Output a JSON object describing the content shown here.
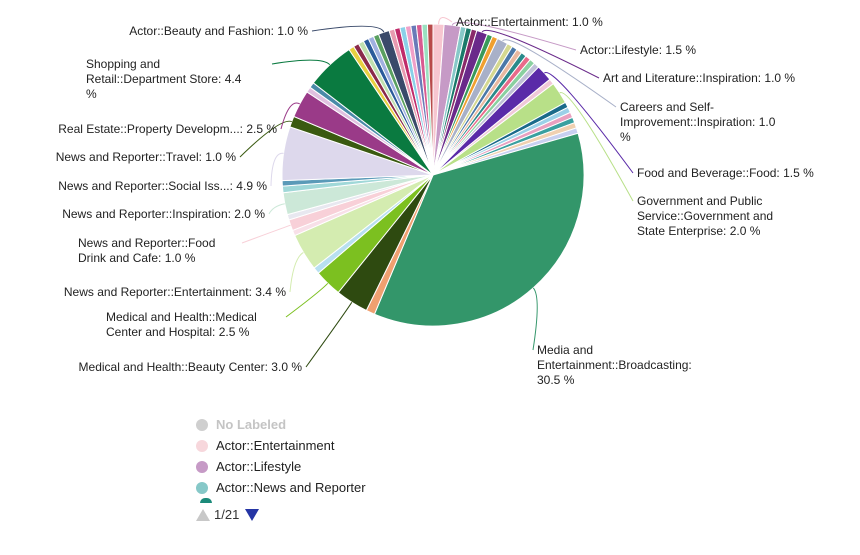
{
  "chart_data": {
    "type": "pie",
    "slices": [
      {
        "label": "Actor::Entertainment",
        "value": 1.0,
        "text": "Actor::Entertainment: 1.0 %",
        "color": "#f7c6d0"
      },
      {
        "label": "Actor::Lifestyle",
        "value": 1.5,
        "text": "Actor::Lifestyle: 1.5 %",
        "color": "#c69ac6"
      },
      {
        "label": "Actor::News and Reporter",
        "value": 0.5,
        "color": "#86c8c8"
      },
      {
        "label": "",
        "value": 0.5,
        "color": "#1a7a6a"
      },
      {
        "label": "",
        "value": 0.5,
        "color": "#8a2a6a"
      },
      {
        "label": "Art and Literature::Inspiration",
        "value": 1.0,
        "text": "Art and Literature::Inspiration: 1.0 %",
        "color": "#6a2a8a"
      },
      {
        "label": "",
        "value": 0.5,
        "color": "#3a9a5a"
      },
      {
        "label": "",
        "value": 0.5,
        "color": "#f0a030"
      },
      {
        "label": "Careers and Self-Improvement::Inspiration",
        "value": 1.0,
        "text": "Careers and Self-Improvement::Inspiration: 1.0 %",
        "color": "#a8b0c8"
      },
      {
        "label": "",
        "value": 0.5,
        "color": "#d4d890"
      },
      {
        "label": "",
        "value": 0.5,
        "color": "#4a78a8"
      },
      {
        "label": "",
        "value": 0.5,
        "color": "#e8b8a0"
      },
      {
        "label": "",
        "value": 0.5,
        "color": "#2a8a8a"
      },
      {
        "label": "",
        "value": 0.5,
        "color": "#e86a8a"
      },
      {
        "label": "",
        "value": 0.5,
        "color": "#8ad0a0"
      },
      {
        "label": "",
        "value": 0.5,
        "color": "#c0c0d8"
      },
      {
        "label": "Food and Beverage::Food",
        "value": 1.5,
        "text": "Food and Beverage::Food: 1.5 %",
        "color": "#5a2aa8"
      },
      {
        "label": "",
        "value": 0.5,
        "color": "#f0c8d8"
      },
      {
        "label": "Government and Public Service::Government and State Enterprise",
        "value": 2.0,
        "text": "Government and Public Service::Government and State Enterprise: 2.0 %",
        "color": "#b8e088"
      },
      {
        "label": "",
        "value": 0.5,
        "color": "#1a6a8a"
      },
      {
        "label": "",
        "value": 0.5,
        "color": "#9ad0e8"
      },
      {
        "label": "",
        "value": 0.5,
        "color": "#e8a0c0"
      },
      {
        "label": "",
        "value": 0.5,
        "color": "#3aa0a0"
      },
      {
        "label": "",
        "value": 0.5,
        "color": "#f0d0b0"
      },
      {
        "label": "",
        "value": 0.5,
        "color": "#c8d0f0"
      },
      {
        "label": "Media and Entertainment::Broadcasting",
        "value": 30.5,
        "text": "Media and Entertainment::Broadcasting: 30.5 %",
        "color": "#33966a"
      },
      {
        "label": "",
        "value": 0.8,
        "color": "#f0a070"
      },
      {
        "label": "Medical and Health::Beauty Center",
        "value": 3.0,
        "text": "Medical and Health::Beauty Center: 3.0 %",
        "color": "#2e4a10"
      },
      {
        "label": "Medical and Health::Medical Center and Hospital",
        "value": 2.5,
        "text": "Medical and Health::Medical Center and Hospital: 2.5 %",
        "color": "#7cc020"
      },
      {
        "label": "",
        "value": 0.6,
        "color": "#b8e0f0"
      },
      {
        "label": "News and Reporter::Entertainment",
        "value": 3.4,
        "text": "News and Reporter::Entertainment: 3.4 %",
        "color": "#d4ecb0"
      },
      {
        "label": "",
        "value": 0.5,
        "color": "#f8e0e8"
      },
      {
        "label": "News and Reporter::Food Drink and Cafe",
        "value": 1.0,
        "text": "News and Reporter::Food Drink and Cafe: 1.0 %",
        "color": "#f8d0d8"
      },
      {
        "label": "",
        "value": 0.5,
        "color": "#e8e8f0"
      },
      {
        "label": "News and Reporter::Inspiration",
        "value": 2.0,
        "text": "News and Reporter::Inspiration: 2.0 %",
        "color": "#cce8d8"
      },
      {
        "label": "",
        "value": 0.6,
        "color": "#a0d8d8"
      },
      {
        "label": "",
        "value": 0.5,
        "color": "#5a9ab8"
      },
      {
        "label": "News and Reporter::Social Iss...",
        "value": 4.9,
        "text": "News and Reporter::Social Iss...: 4.9 %",
        "color": "#ddd8ec"
      },
      {
        "label": "News and Reporter::Travel",
        "value": 1.0,
        "text": "News and Reporter::Travel: 1.0 %",
        "color": "#3a5a10"
      },
      {
        "label": "Real Estate::Property Developm...",
        "value": 2.5,
        "text": "Real Estate::Property Developm...: 2.5 %",
        "color": "#9a3a88"
      },
      {
        "label": "",
        "value": 0.5,
        "color": "#e0c0e0"
      },
      {
        "label": "",
        "value": 0.5,
        "color": "#4a8aa8"
      },
      {
        "label": "Shopping and Retail::Department Store",
        "value": 4.4,
        "text": "Shopping and Retail::Department Store: 4.4 %",
        "color": "#0a7a40"
      },
      {
        "label": "",
        "value": 0.5,
        "color": "#e8d040"
      },
      {
        "label": "",
        "value": 0.5,
        "color": "#8a2a4a"
      },
      {
        "label": "",
        "value": 0.5,
        "color": "#c0e0b0"
      },
      {
        "label": "",
        "value": 0.5,
        "color": "#2a5a9a"
      },
      {
        "label": "",
        "value": 0.5,
        "color": "#a0b0e0"
      },
      {
        "label": "",
        "value": 0.5,
        "color": "#5aa060"
      },
      {
        "label": "Actor::Beauty and Fashion",
        "value": 1.0,
        "text": "Actor::Beauty and Fashion: 1.0 %",
        "color": "#3a4a6a"
      },
      {
        "label": "",
        "value": 0.5,
        "color": "#e89ab0"
      },
      {
        "label": "",
        "value": 0.5,
        "color": "#c02a6a"
      },
      {
        "label": "",
        "value": 0.5,
        "color": "#8ad0e8"
      },
      {
        "label": "",
        "value": 0.5,
        "color": "#f0a0c8"
      },
      {
        "label": "",
        "value": 0.5,
        "color": "#6a7ab8"
      },
      {
        "label": "",
        "value": 0.5,
        "color": "#d85a90"
      },
      {
        "label": "",
        "value": 0.5,
        "color": "#9ae0c0"
      },
      {
        "label": "",
        "value": 0.5,
        "color": "#b84a4a"
      }
    ]
  },
  "legend": {
    "items": [
      {
        "label": "No Labeled",
        "color": "#cfcfcf",
        "muted": true
      },
      {
        "label": "Actor::Entertainment",
        "color": "#f7d7dc",
        "muted": false
      },
      {
        "label": "Actor::Lifestyle",
        "color": "#c69ac6",
        "muted": false
      },
      {
        "label": "Actor::News and Reporter",
        "color": "#86c8c8",
        "muted": false
      }
    ],
    "page": "1/21"
  }
}
